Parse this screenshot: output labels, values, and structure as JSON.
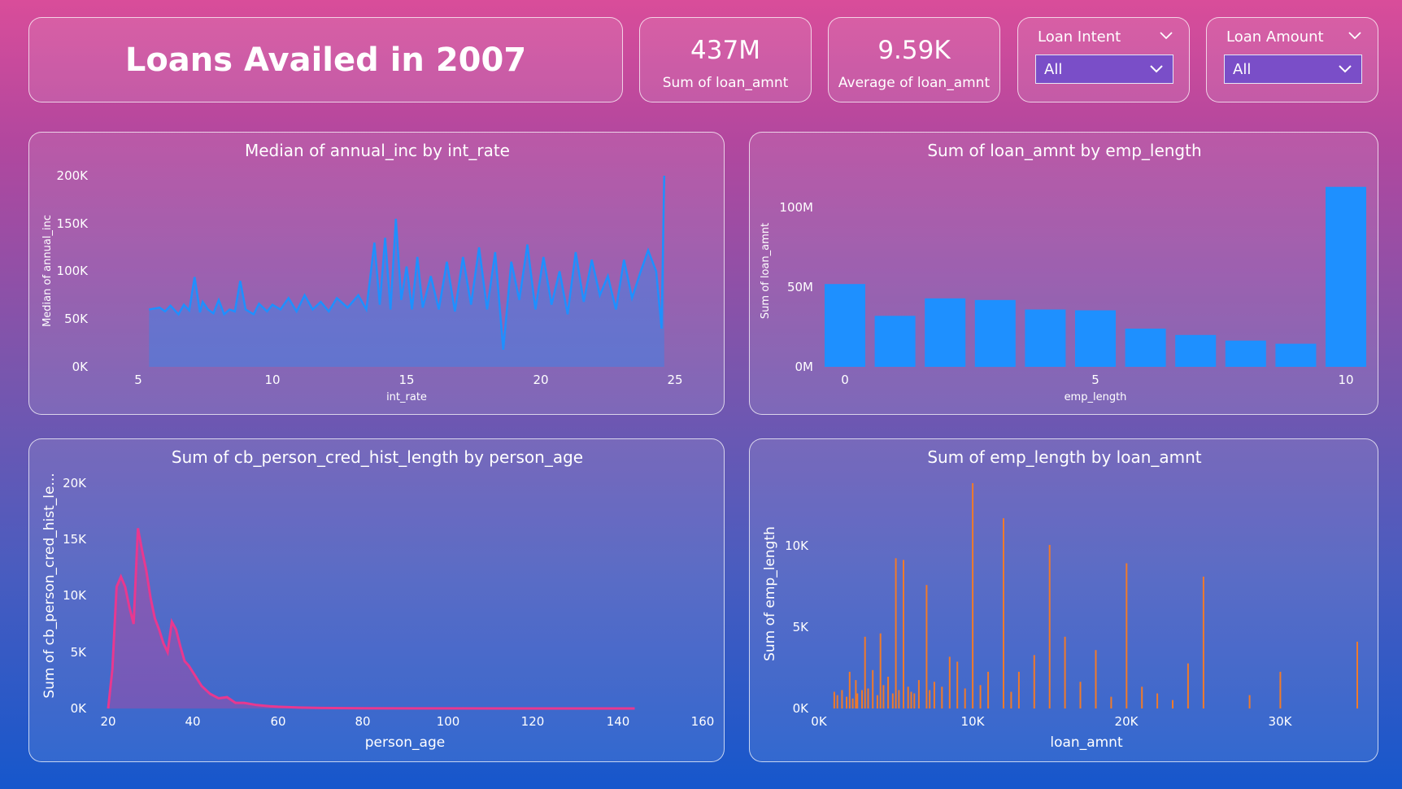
{
  "header": {
    "title": "Loans Availed in 2007"
  },
  "kpis": [
    {
      "value": "437M",
      "label": "Sum of loan_amnt"
    },
    {
      "value": "9.59K",
      "label": "Average of loan_amnt"
    }
  ],
  "slicers": [
    {
      "label": "Loan Intent",
      "value": "All"
    },
    {
      "label": "Loan Amount",
      "value": "All"
    }
  ],
  "chart_data": [
    {
      "type": "area",
      "title": "Median of annual_inc by int_rate",
      "xlabel": "int_rate",
      "ylabel": "Median of annual_inc",
      "xlim": [
        5,
        25
      ],
      "ylim": [
        0,
        200000
      ],
      "x_ticks": [
        "5",
        "10",
        "15",
        "20",
        "25"
      ],
      "y_ticks": [
        "0K",
        "50K",
        "100K",
        "150K",
        "200K"
      ],
      "color": "#1e90ff",
      "series": [
        {
          "x": [
            5.4,
            5.8,
            6.0,
            6.2,
            6.5,
            6.7,
            6.9,
            7.1,
            7.3,
            7.4,
            7.6,
            7.8,
            8.0,
            8.2,
            8.4,
            8.6,
            8.8,
            9.0,
            9.3,
            9.5,
            9.8,
            10.0,
            10.3,
            10.6,
            10.9,
            11.2,
            11.5,
            11.8,
            12.1,
            12.4,
            12.8,
            13.2,
            13.5,
            13.8,
            14.0,
            14.2,
            14.4,
            14.6,
            14.8,
            15.0,
            15.2,
            15.4,
            15.6,
            15.9,
            16.2,
            16.5,
            16.8,
            17.1,
            17.4,
            17.7,
            18.0,
            18.3,
            18.6,
            18.9,
            19.2,
            19.5,
            19.8,
            20.1,
            20.4,
            20.7,
            21.0,
            21.3,
            21.6,
            21.9,
            22.2,
            22.5,
            22.8,
            23.1,
            23.4,
            23.7,
            24.0,
            24.3,
            24.5,
            24.6
          ],
          "values": [
            60000,
            62000,
            58000,
            64000,
            55000,
            65000,
            59000,
            94000,
            57000,
            68000,
            60000,
            56000,
            70000,
            55000,
            60000,
            58000,
            90000,
            60000,
            55000,
            66000,
            58000,
            65000,
            60000,
            72000,
            58000,
            75000,
            60000,
            68000,
            58000,
            72000,
            62000,
            75000,
            60000,
            130000,
            65000,
            135000,
            60000,
            155000,
            70000,
            105000,
            60000,
            115000,
            62000,
            95000,
            60000,
            110000,
            58000,
            115000,
            65000,
            125000,
            60000,
            120000,
            18000,
            110000,
            70000,
            128000,
            60000,
            115000,
            65000,
            100000,
            55000,
            120000,
            68000,
            112000,
            75000,
            95000,
            60000,
            112000,
            72000,
            98000,
            122000,
            100000,
            40000,
            200000
          ]
        }
      ]
    },
    {
      "type": "bar",
      "title": "Sum of loan_amnt by emp_length",
      "xlabel": "emp_length",
      "ylabel": "Sum of loan_amnt",
      "x_ticks": [
        "0",
        "5",
        "10"
      ],
      "y_ticks": [
        "0M",
        "50M",
        "100M"
      ],
      "ylim": [
        0,
        120000000
      ],
      "color": "#1e90ff",
      "categories": [
        0,
        1,
        2,
        3,
        4,
        5,
        6,
        7,
        8,
        9,
        10
      ],
      "values": [
        52000000,
        32000000,
        43000000,
        42000000,
        36000000,
        35500000,
        24000000,
        20000000,
        16500000,
        14500000,
        113000000
      ]
    },
    {
      "type": "area",
      "title": "Sum of cb_person_cred_hist_length by person_age",
      "xlabel": "person_age",
      "ylabel": "Sum of cb_person_cred_hist_le...",
      "xlim": [
        20,
        160
      ],
      "ylim": [
        0,
        20000
      ],
      "x_ticks": [
        "20",
        "40",
        "60",
        "80",
        "100",
        "120",
        "140",
        "160"
      ],
      "y_ticks": [
        "0K",
        "5K",
        "10K",
        "15K",
        "20K"
      ],
      "color": "#e8388f",
      "series": [
        {
          "x": [
            20,
            21,
            22,
            23,
            24,
            25,
            26,
            27,
            28,
            29,
            30,
            31,
            32,
            33,
            34,
            35,
            36,
            37,
            38,
            39,
            40,
            42,
            44,
            46,
            48,
            50,
            52,
            55,
            58,
            60,
            65,
            70,
            80,
            100,
            120,
            144
          ],
          "values": [
            0,
            3500,
            10800,
            11700,
            10800,
            9000,
            7500,
            16000,
            14000,
            12200,
            9800,
            8000,
            7000,
            5800,
            5000,
            7700,
            7000,
            5500,
            4200,
            3800,
            3200,
            2000,
            1300,
            900,
            1000,
            500,
            500,
            300,
            200,
            150,
            80,
            40,
            15,
            5,
            0,
            0
          ]
        }
      ]
    },
    {
      "type": "bar",
      "title": "Sum of emp_length by loan_amnt",
      "xlabel": "loan_amnt",
      "ylabel": "Sum of emp_length",
      "xlim": [
        0,
        35000
      ],
      "ylim": [
        0,
        13500
      ],
      "x_ticks": [
        "0K",
        "10K",
        "20K",
        "30K"
      ],
      "y_ticks": [
        "0K",
        "5K",
        "10K"
      ],
      "color": "#f07a2a",
      "x": [
        1000,
        1200,
        1500,
        1800,
        2000,
        2200,
        2400,
        2500,
        2800,
        3000,
        3200,
        3500,
        3800,
        4000,
        4200,
        4500,
        4800,
        5000,
        5200,
        5500,
        5800,
        6000,
        6200,
        6500,
        7000,
        7200,
        7500,
        8000,
        8500,
        9000,
        9500,
        10000,
        10500,
        11000,
        12000,
        12500,
        13000,
        14000,
        15000,
        16000,
        17000,
        18000,
        19000,
        20000,
        21000,
        22000,
        23000,
        24000,
        25000,
        28000,
        30000,
        35000
      ],
      "values": [
        1000,
        800,
        1100,
        700,
        2200,
        600,
        1700,
        900,
        1100,
        4300,
        1200,
        2300,
        800,
        4500,
        1400,
        1900,
        900,
        9000,
        1100,
        8900,
        1300,
        1000,
        900,
        1700,
        7400,
        1100,
        1600,
        1300,
        3100,
        2800,
        1200,
        13500,
        1400,
        2200,
        11400,
        1000,
        2200,
        3200,
        9800,
        4300,
        1600,
        3500,
        700,
        8700,
        1300,
        900,
        500,
        2700,
        7900,
        800,
        2200,
        4000
      ]
    }
  ]
}
